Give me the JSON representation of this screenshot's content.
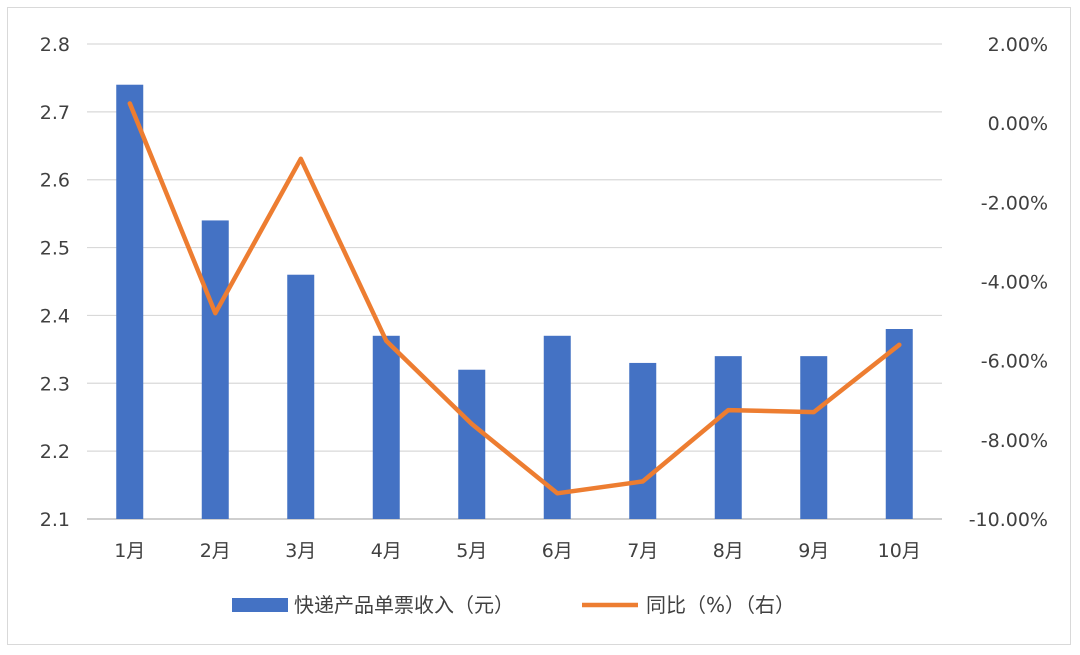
{
  "chart_data": {
    "type": "bar",
    "categories": [
      "1月",
      "2月",
      "3月",
      "4月",
      "5月",
      "6月",
      "7月",
      "8月",
      "9月",
      "10月"
    ],
    "series": [
      {
        "name": "快递产品单票收入（元）",
        "type": "bar",
        "axis": "left",
        "color": "#4472c4",
        "values": [
          2.74,
          2.54,
          2.46,
          2.37,
          2.32,
          2.37,
          2.33,
          2.34,
          2.34,
          2.38
        ]
      },
      {
        "name": "同比（%）（右）",
        "type": "line",
        "axis": "right",
        "color": "#ed7d31",
        "values": [
          0.5,
          -4.8,
          -0.9,
          -5.5,
          -7.6,
          -9.35,
          -9.05,
          -7.25,
          -7.3,
          -5.6
        ]
      }
    ],
    "y_left": {
      "range": [
        2.1,
        2.8
      ],
      "ticks": [
        2.1,
        2.2,
        2.3,
        2.4,
        2.5,
        2.6,
        2.7,
        2.8
      ],
      "tick_labels": [
        "2.1",
        "2.2",
        "2.3",
        "2.4",
        "2.5",
        "2.6",
        "2.7",
        "2.8"
      ]
    },
    "y_right": {
      "range": [
        -10,
        2
      ],
      "ticks": [
        -10,
        -8,
        -6,
        -4,
        -2,
        0,
        2
      ],
      "tick_labels": [
        "-10.00%",
        "-8.00%",
        "-6.00%",
        "-4.00%",
        "-2.00%",
        "0.00%",
        "2.00%"
      ]
    },
    "grid": true,
    "legend_position": "bottom"
  }
}
